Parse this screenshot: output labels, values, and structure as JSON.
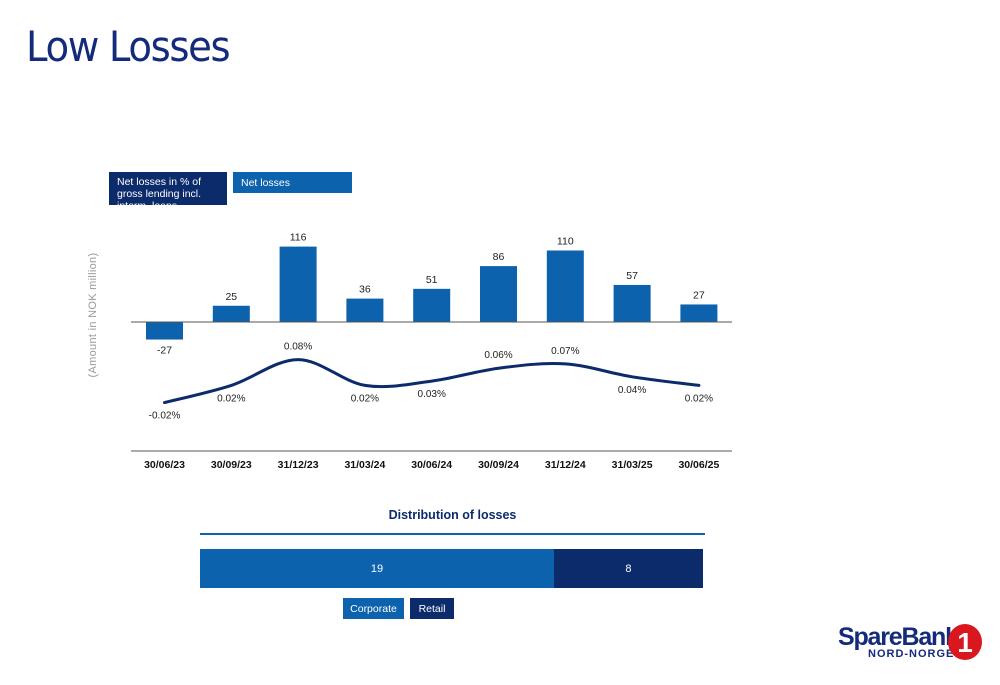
{
  "page": {
    "title": "Low Losses"
  },
  "chart_data": [
    {
      "type": "bar",
      "categories": [
        "30/06/23",
        "30/09/23",
        "31/12/23",
        "31/03/24",
        "30/06/24",
        "30/09/24",
        "31/12/24",
        "31/03/25",
        "30/06/25"
      ],
      "series": [
        {
          "name": "Net losses",
          "values": [
            -27,
            25,
            116,
            36,
            51,
            86,
            110,
            57,
            27
          ],
          "color": "#0d62ad"
        }
      ],
      "ylabel": "(Amount in NOK million)"
    },
    {
      "type": "line",
      "categories": [
        "30/06/23",
        "30/09/23",
        "31/12/23",
        "31/03/24",
        "30/06/24",
        "30/09/24",
        "31/12/24",
        "31/03/25",
        "30/06/25"
      ],
      "series": [
        {
          "name": "Net losses in % of gross lending incl. interm. loans",
          "values": [
            -0.02,
            0.02,
            0.08,
            0.02,
            0.03,
            0.06,
            0.07,
            0.04,
            0.02
          ],
          "labels": [
            "-0.02%",
            "0.02%",
            "0.08%",
            "0.02%",
            "0.03%",
            "0.06%",
            "0.07%",
            "0.04%",
            "0.02%"
          ],
          "color": "#0c2b6b"
        }
      ]
    },
    {
      "type": "bar",
      "orientation": "horizontal-stacked",
      "title": "Distribution of losses",
      "series": [
        {
          "name": "Corporate",
          "values": [
            19
          ],
          "color": "#0d62ad"
        },
        {
          "name": "Retail",
          "values": [
            8
          ],
          "color": "#0c2b6b"
        }
      ]
    }
  ],
  "legend": {
    "pct_label": "Net losses in % of gross lending incl. interm. loans",
    "net_label": "Net losses"
  },
  "distribution": {
    "title": "Distribution of losses",
    "corporate_label": "Corporate",
    "retail_label": "Retail",
    "corporate_value": "19",
    "retail_value": "8"
  },
  "logo": {
    "line1": "SpareBank",
    "line2": "NORD-NORGE",
    "numeral": "1"
  },
  "colors": {
    "title": "#142a7a",
    "net_losses": "#0d62ad",
    "pct_line": "#0c2b6b",
    "retail": "#0c2b6b",
    "logo_red": "#d8171e"
  }
}
